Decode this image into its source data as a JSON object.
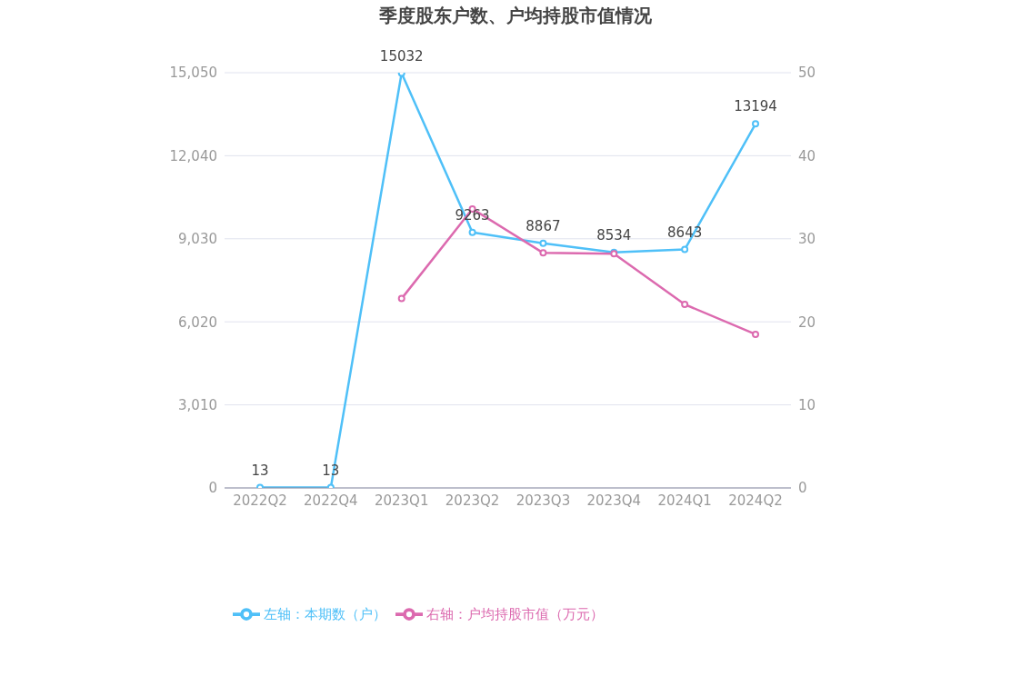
{
  "chart_data": {
    "type": "line",
    "title": "季度股东户数、户均持股市值情况",
    "categories": [
      "2022Q2",
      "2022Q4",
      "2023Q1",
      "2023Q2",
      "2023Q3",
      "2023Q4",
      "2024Q1",
      "2024Q2"
    ],
    "series": [
      {
        "name": "左轴：本期数（户）",
        "color": "#4fc0f8",
        "values": [
          13,
          13,
          15032,
          9263,
          8867,
          8534,
          8643,
          13194
        ],
        "value_labels": [
          "13",
          "13",
          "15032",
          "9263",
          "8867",
          "8534",
          "8643",
          "13194"
        ]
      },
      {
        "name": "右轴：户均持股市值（万元）",
        "color": "#dc6aaf",
        "axis": "y2",
        "values": [
          null,
          null,
          22.8,
          33.6,
          28.3,
          28.2,
          22.1,
          18.5
        ]
      }
    ],
    "ylim": [
      0,
      15050
    ],
    "yticks": [
      0,
      {
        "value": 3010,
        "label": "3,010"
      },
      {
        "value": 6020,
        "label": "6,020"
      },
      {
        "value": 9030,
        "label": "9,030"
      },
      {
        "value": 12040,
        "label": "12,040"
      },
      {
        "value": 15050,
        "label": "15,050"
      }
    ],
    "y2lim": [
      0,
      50
    ],
    "y2ticks": [
      0,
      10,
      20,
      30,
      40,
      50
    ],
    "grid": "y",
    "legend": "bottom",
    "marker": "circle",
    "line_style": "solid"
  }
}
